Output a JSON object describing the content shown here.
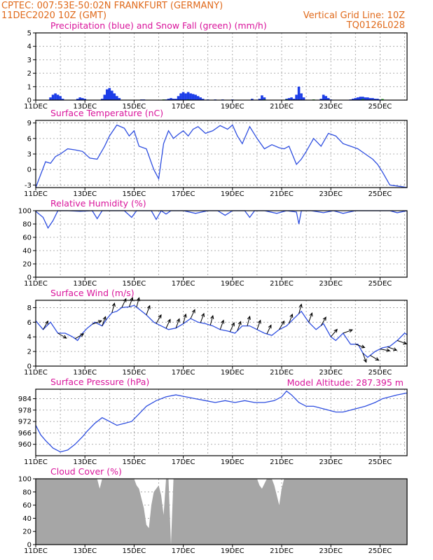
{
  "header": {
    "line1": "CPTEC:   007:53E-50:02N  FRANKFURT (GERMANY)",
    "line2_left": "11DEC2020 10Z (GMT)",
    "line2_right": "Vertical Grid Line: 10Z",
    "line3_right": "TQ0126L028",
    "model_altitude": "Model Altitude: 287.395 m"
  },
  "x_axis": {
    "start_day": 11,
    "end_day": 26.1,
    "tick_labels": [
      "11DEC",
      "13DEC",
      "15DEC",
      "17DEC",
      "19DEC",
      "21DEC",
      "23DEC",
      "25DEC"
    ],
    "tick_days": [
      11,
      13,
      15,
      17,
      19,
      21,
      23,
      25
    ]
  },
  "colors": {
    "header": "#e06a1b",
    "panel_title": "#d9149b",
    "line": "#2f4fe0",
    "precipitation": "#1d3ee8",
    "snow": "#1aa51a",
    "cloud": "#a6a6a6"
  },
  "chart_data": [
    {
      "type": "bar",
      "title": "Precipitation (blue) and Snow Fall (green) (mm/h)",
      "ylim": [
        0,
        5
      ],
      "yticks": [
        0,
        1,
        2,
        3,
        4,
        5
      ],
      "series": [
        {
          "name": "Precipitation",
          "x": [
            11.6,
            11.7,
            11.8,
            11.9,
            12.0,
            12.1,
            12.7,
            12.8,
            12.9,
            13.0,
            13.7,
            13.8,
            13.9,
            14.0,
            14.1,
            14.2,
            14.3,
            14.4,
            15.3,
            15.4,
            16.3,
            16.4,
            16.5,
            16.6,
            16.7,
            16.8,
            16.9,
            17.0,
            17.1,
            17.2,
            17.3,
            17.4,
            17.5,
            17.6,
            17.7,
            17.8,
            18.0,
            18.3,
            18.6,
            19.0,
            19.8,
            20.1,
            20.2,
            20.3,
            21.2,
            21.3,
            21.4,
            21.5,
            21.6,
            21.7,
            21.8,
            21.9,
            22.6,
            22.7,
            22.8,
            22.9,
            23.0,
            23.8,
            23.9,
            24.0,
            24.1,
            24.2,
            24.3,
            24.4,
            24.5,
            24.6,
            24.7,
            24.8,
            24.9,
            25.0
          ],
          "values": [
            0.2,
            0.4,
            0.5,
            0.4,
            0.3,
            0.1,
            0.1,
            0.2,
            0.15,
            0.1,
            0.1,
            0.4,
            0.8,
            0.9,
            0.7,
            0.5,
            0.3,
            0.15,
            0.05,
            0.05,
            0.05,
            0.1,
            0.15,
            0.1,
            0.1,
            0.3,
            0.5,
            0.6,
            0.5,
            0.6,
            0.5,
            0.45,
            0.4,
            0.3,
            0.2,
            0.1,
            0.05,
            0.05,
            0.05,
            0.05,
            0.1,
            0.1,
            0.35,
            0.2,
            0.1,
            0.15,
            0.2,
            0.1,
            0.4,
            1.0,
            0.5,
            0.2,
            0.1,
            0.4,
            0.3,
            0.15,
            0.05,
            0.05,
            0.1,
            0.15,
            0.2,
            0.25,
            0.25,
            0.2,
            0.2,
            0.15,
            0.15,
            0.1,
            0.1,
            0.05
          ]
        },
        {
          "name": "Snow Fall",
          "x": [
            16.2,
            17.2,
            20.3,
            21.2,
            22.3,
            24.3,
            25.1
          ],
          "values": [
            0.05,
            0.05,
            0.05,
            0.05,
            0.05,
            0.08,
            0.08
          ]
        }
      ]
    },
    {
      "type": "line",
      "title": "Surface Temperature (nC)",
      "ylim": [
        -3.5,
        9.5
      ],
      "yticks": [
        -3,
        0,
        3,
        6,
        9
      ],
      "x": [
        11.0,
        11.2,
        11.4,
        11.6,
        11.8,
        12.0,
        12.3,
        12.6,
        12.9,
        13.2,
        13.5,
        13.8,
        14.0,
        14.3,
        14.6,
        14.8,
        15.0,
        15.2,
        15.5,
        15.8,
        16.0,
        16.2,
        16.4,
        16.6,
        16.8,
        17.0,
        17.2,
        17.4,
        17.6,
        17.9,
        18.2,
        18.5,
        18.8,
        19.0,
        19.2,
        19.4,
        19.7,
        20.0,
        20.3,
        20.6,
        20.9,
        21.1,
        21.3,
        21.6,
        21.8,
        22.0,
        22.3,
        22.6,
        22.9,
        23.2,
        23.5,
        23.8,
        24.1,
        24.4,
        24.7,
        24.9,
        25.1,
        25.4,
        25.7,
        26.0,
        26.1
      ],
      "values": [
        -3.5,
        -1.0,
        1.5,
        1.2,
        2.5,
        3.0,
        4.0,
        3.8,
        3.5,
        2.2,
        2.0,
        4.5,
        6.5,
        8.6,
        8.0,
        6.5,
        7.5,
        4.5,
        4.0,
        0.0,
        -1.8,
        5.0,
        7.5,
        6.0,
        6.8,
        7.5,
        6.5,
        7.8,
        8.3,
        7.0,
        7.5,
        8.5,
        7.8,
        8.6,
        6.5,
        5.0,
        8.3,
        6.0,
        4.0,
        4.8,
        4.2,
        4.0,
        4.5,
        1.0,
        2.0,
        3.5,
        6.0,
        4.5,
        7.0,
        6.5,
        5.0,
        4.5,
        4.0,
        3.0,
        2.0,
        1.0,
        -0.5,
        -3.0,
        -3.2,
        -3.4,
        -3.5
      ]
    },
    {
      "type": "line",
      "title": "Relative Humidity (%)",
      "ylim": [
        0,
        100
      ],
      "yticks": [
        0,
        20,
        40,
        60,
        80,
        100
      ],
      "x": [
        11.0,
        11.3,
        11.5,
        11.7,
        11.9,
        12.3,
        12.8,
        13.3,
        13.5,
        13.7,
        14.0,
        14.6,
        14.9,
        15.1,
        15.4,
        15.7,
        15.9,
        16.1,
        16.3,
        16.5,
        17.0,
        17.5,
        18.0,
        18.4,
        18.7,
        19.0,
        19.5,
        19.7,
        19.9,
        20.3,
        20.8,
        21.2,
        21.6,
        21.7,
        21.8,
        22.2,
        22.7,
        23.1,
        23.5,
        24.0,
        24.8,
        25.4,
        25.7,
        26.1
      ],
      "values": [
        99,
        90,
        74,
        85,
        100,
        100,
        99,
        100,
        88,
        100,
        100,
        100,
        90,
        100,
        100,
        100,
        87,
        100,
        95,
        100,
        100,
        96,
        100,
        100,
        93,
        100,
        100,
        90,
        100,
        100,
        96,
        100,
        98,
        80,
        100,
        100,
        97,
        100,
        96,
        100,
        100,
        100,
        97,
        100
      ]
    },
    {
      "type": "line",
      "title": "Surface Wind (m/s)",
      "ylim": [
        0,
        9
      ],
      "yticks": [
        0,
        2,
        4,
        6,
        8
      ],
      "x": [
        11.0,
        11.3,
        11.6,
        11.9,
        12.2,
        12.5,
        12.7,
        12.9,
        13.1,
        13.4,
        13.7,
        13.9,
        14.1,
        14.3,
        14.5,
        14.8,
        15.0,
        15.2,
        15.5,
        15.8,
        16.1,
        16.4,
        16.7,
        17.0,
        17.3,
        17.6,
        17.9,
        18.2,
        18.5,
        18.8,
        19.1,
        19.4,
        19.7,
        20.0,
        20.3,
        20.6,
        20.9,
        21.2,
        21.5,
        21.8,
        22.1,
        22.4,
        22.7,
        23.0,
        23.2,
        23.5,
        23.8,
        24.1,
        24.3,
        24.5,
        24.8,
        25.1,
        25.4,
        25.7,
        26.0,
        26.1
      ],
      "values": [
        6.2,
        5.0,
        6.0,
        4.5,
        4.5,
        4.0,
        3.5,
        4.5,
        5.2,
        6.0,
        5.5,
        6.5,
        7.3,
        7.5,
        8.0,
        8.1,
        8.3,
        7.8,
        7.0,
        6.0,
        5.5,
        5.0,
        5.2,
        5.8,
        6.5,
        6.0,
        5.8,
        5.5,
        5.0,
        4.8,
        4.5,
        5.5,
        5.5,
        5.0,
        4.5,
        4.2,
        5.0,
        5.5,
        6.5,
        7.5,
        6.0,
        5.0,
        5.8,
        4.0,
        3.5,
        4.5,
        3.0,
        3.0,
        1.8,
        1.2,
        2.0,
        2.5,
        2.7,
        3.5,
        4.5,
        4.3
      ],
      "arrows_x": [
        11.3,
        11.9,
        12.6,
        13.3,
        13.7,
        14.1,
        14.5,
        14.8,
        15.1,
        15.5,
        15.9,
        16.3,
        16.7,
        17.0,
        17.3,
        17.7,
        18.1,
        18.5,
        18.9,
        19.2,
        19.6,
        20.0,
        20.4,
        20.9,
        21.3,
        21.7,
        22.1,
        22.6,
        23.0,
        23.5,
        24.0,
        24.3,
        24.6,
        25.0,
        25.3,
        25.7
      ],
      "arrows_dir": [
        30,
        120,
        60,
        70,
        20,
        15,
        25,
        20,
        15,
        20,
        30,
        25,
        20,
        15,
        25,
        20,
        15,
        20,
        25,
        20,
        15,
        20,
        25,
        30,
        20,
        15,
        20,
        30,
        40,
        70,
        110,
        160,
        120,
        100,
        110,
        110
      ]
    },
    {
      "type": "line",
      "title": "Surface Pressure (hPa)",
      "ylim": [
        954,
        989
      ],
      "yticks": [
        960,
        966,
        972,
        978,
        984
      ],
      "x": [
        11.0,
        11.2,
        11.4,
        11.7,
        12.0,
        12.3,
        12.6,
        12.9,
        13.1,
        13.4,
        13.7,
        14.0,
        14.3,
        14.6,
        14.9,
        15.2,
        15.5,
        15.9,
        16.3,
        16.7,
        17.1,
        17.5,
        17.9,
        18.3,
        18.7,
        19.1,
        19.5,
        19.9,
        20.3,
        20.7,
        21.0,
        21.2,
        21.4,
        21.7,
        22.0,
        22.3,
        22.6,
        22.9,
        23.2,
        23.5,
        23.8,
        24.1,
        24.4,
        24.8,
        25.1,
        25.4,
        25.7,
        26.1
      ],
      "values": [
        970,
        965,
        962,
        958,
        956,
        957,
        960,
        964,
        967,
        971,
        974,
        972,
        970,
        971,
        972,
        976,
        980,
        983,
        985,
        986,
        985,
        984,
        983,
        982,
        983,
        982,
        983,
        982,
        982,
        983,
        985,
        988,
        986,
        982,
        980,
        980,
        979,
        978,
        977,
        977,
        978,
        979,
        980,
        982,
        984,
        985,
        986,
        987
      ]
    },
    {
      "type": "area",
      "title": "Cloud Cover (%)",
      "ylim": [
        0,
        100
      ],
      "yticks": [
        0,
        20,
        40,
        60,
        80,
        100
      ],
      "x": [
        11.0,
        13.5,
        13.6,
        13.7,
        13.8,
        15.0,
        15.1,
        15.2,
        15.3,
        15.4,
        15.5,
        15.6,
        15.7,
        15.8,
        15.9,
        16.0,
        16.1,
        16.2,
        16.3,
        16.4,
        16.5,
        16.6,
        16.7,
        16.8,
        20.0,
        20.1,
        20.2,
        20.4,
        20.6,
        20.7,
        20.8,
        20.9,
        21.0,
        21.1,
        21.2,
        22.5,
        26.1
      ],
      "values": [
        100,
        100,
        85,
        100,
        100,
        100,
        90,
        85,
        70,
        55,
        30,
        25,
        60,
        80,
        85,
        90,
        75,
        45,
        100,
        100,
        0,
        100,
        100,
        100,
        100,
        90,
        85,
        100,
        100,
        90,
        75,
        60,
        85,
        100,
        100,
        100,
        100
      ]
    }
  ]
}
